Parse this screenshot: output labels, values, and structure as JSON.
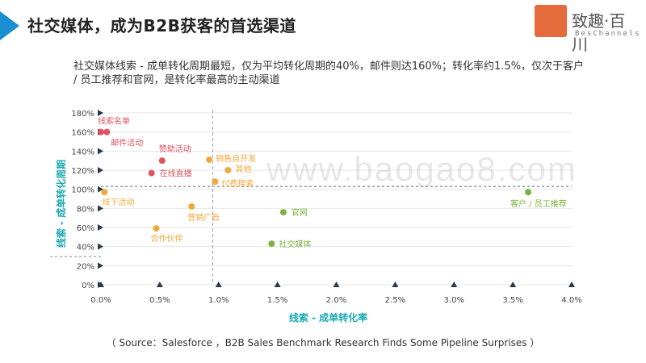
{
  "slide": {
    "title": "社交媒体，成为B2B获客的首选渠道",
    "subtitle": "社交媒体线索 - 成单转化周期最短，仅为平均转化周期的40%，邮件则达160%；转化率约1.5%，仅次于客户 / 员工推荐和官网，是转化率最高的主动渠道",
    "source": "（ Source：Salesforce ，B2B Sales Benchmark Research Finds Some Pipeline Surprises ）",
    "watermark": "www.baogao8.com"
  },
  "logo": {
    "brand": "致趣·百川",
    "sub": "BesChannels"
  },
  "colors": {
    "accent": "#1b8fd0",
    "axis_title": "#1aa9b3",
    "red": "#e0535f",
    "orange": "#f2a93b",
    "green": "#7bb43c",
    "logo": "#e46b3c"
  },
  "chart_data": {
    "type": "scatter",
    "xlabel": "线索 - 成单转化率",
    "ylabel": "线索 - 成单转化周期",
    "xlim": [
      0,
      4.0
    ],
    "ylim": [
      0,
      180
    ],
    "x_ticks": [
      "0.0%",
      "0.5%",
      "1.0%",
      "1.5%",
      "2.0%",
      "2.5%",
      "3.0%",
      "3.5%",
      "4.0%"
    ],
    "y_ticks": [
      "0%",
      "20%",
      "40%",
      "60%",
      "80%",
      "100%",
      "120%",
      "140%",
      "160%",
      "180%"
    ],
    "reference_lines": {
      "x": 0.95,
      "y": 103
    },
    "points": [
      {
        "label": "线索名单",
        "x": 0.0,
        "y": 160,
        "color": "red"
      },
      {
        "label": "邮件活动",
        "x": 0.05,
        "y": 160,
        "color": "red"
      },
      {
        "label": "赞助活动",
        "x": 0.52,
        "y": 130,
        "color": "red"
      },
      {
        "label": "在线直播",
        "x": 0.43,
        "y": 117,
        "color": "red"
      },
      {
        "label": "销售自开发",
        "x": 0.92,
        "y": 131,
        "color": "orange"
      },
      {
        "label": "其他",
        "x": 1.08,
        "y": 120,
        "color": "orange"
      },
      {
        "label": "付费搜索",
        "x": 0.97,
        "y": 108,
        "color": "orange"
      },
      {
        "label": "线下活动",
        "x": 0.03,
        "y": 97,
        "color": "orange"
      },
      {
        "label": "营销广告",
        "x": 0.77,
        "y": 82,
        "color": "orange"
      },
      {
        "label": "合作伙伴",
        "x": 0.47,
        "y": 59,
        "color": "orange"
      },
      {
        "label": "官网",
        "x": 1.55,
        "y": 76,
        "color": "green"
      },
      {
        "label": "社交媒体",
        "x": 1.45,
        "y": 43,
        "color": "green"
      },
      {
        "label": "客户 / 员工推荐",
        "x": 3.63,
        "y": 97,
        "color": "green"
      }
    ]
  }
}
